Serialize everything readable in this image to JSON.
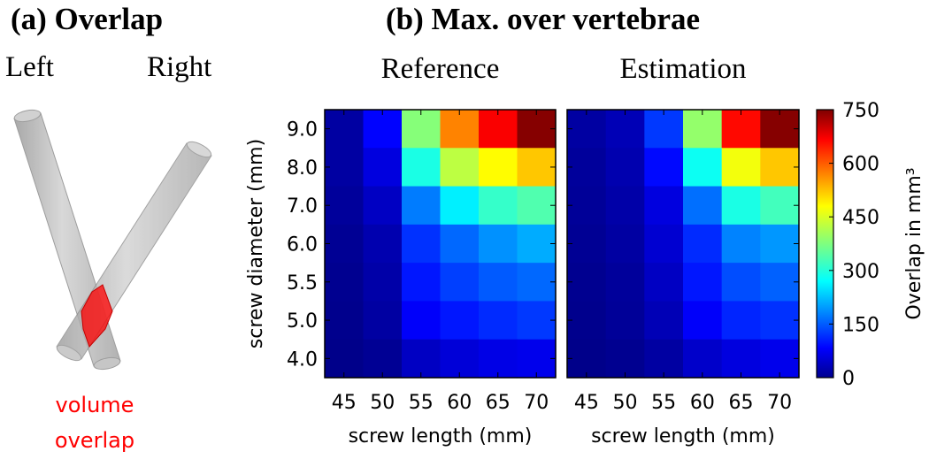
{
  "panel_a": {
    "title": "(a) Overlap",
    "left_label": "Left",
    "right_label": "Right",
    "overlap_label_line1": "volume",
    "overlap_label_line2": "overlap",
    "overlap_color": "#ff0000",
    "cylinder_color": "#b8b8b8"
  },
  "panel_b": {
    "title": "(b) Max. over vertebrae"
  },
  "chart_data": [
    {
      "type": "heatmap",
      "title": "Reference",
      "xlabel": "screw length (mm)",
      "ylabel": "screw diameter (mm)",
      "x_categories": [
        "45",
        "50",
        "55",
        "60",
        "65",
        "70"
      ],
      "y_categories": [
        "9.0",
        "8.0",
        "7.0",
        "6.0",
        "5.5",
        "5.0",
        "4.0"
      ],
      "values": [
        [
          25,
          95,
          380,
          560,
          660,
          745
        ],
        [
          25,
          70,
          300,
          420,
          470,
          510
        ],
        [
          20,
          50,
          185,
          270,
          320,
          340
        ],
        [
          15,
          35,
          130,
          170,
          200,
          220
        ],
        [
          12,
          30,
          110,
          140,
          160,
          170
        ],
        [
          10,
          25,
          90,
          110,
          125,
          135
        ],
        [
          8,
          15,
          50,
          65,
          75,
          80
        ]
      ]
    },
    {
      "type": "heatmap",
      "title": "Estimation",
      "xlabel": "screw length (mm)",
      "ylabel": "",
      "x_categories": [
        "45",
        "50",
        "55",
        "60",
        "65",
        "70"
      ],
      "y_categories": [
        "9.0",
        "8.0",
        "7.0",
        "6.0",
        "5.5",
        "5.0",
        "4.0"
      ],
      "values": [
        [
          25,
          40,
          135,
          390,
          650,
          745
        ],
        [
          20,
          35,
          100,
          290,
          460,
          510
        ],
        [
          18,
          30,
          70,
          175,
          300,
          330
        ],
        [
          15,
          25,
          60,
          125,
          190,
          205
        ],
        [
          12,
          20,
          50,
          110,
          150,
          165
        ],
        [
          10,
          18,
          40,
          90,
          120,
          130
        ],
        [
          8,
          12,
          25,
          55,
          70,
          80
        ]
      ]
    }
  ],
  "colorbar": {
    "label": "Overlap in mm³",
    "min": 0,
    "max": 750,
    "ticks": [
      "0",
      "150",
      "300",
      "450",
      "600",
      "750"
    ],
    "colormap": "jet"
  }
}
